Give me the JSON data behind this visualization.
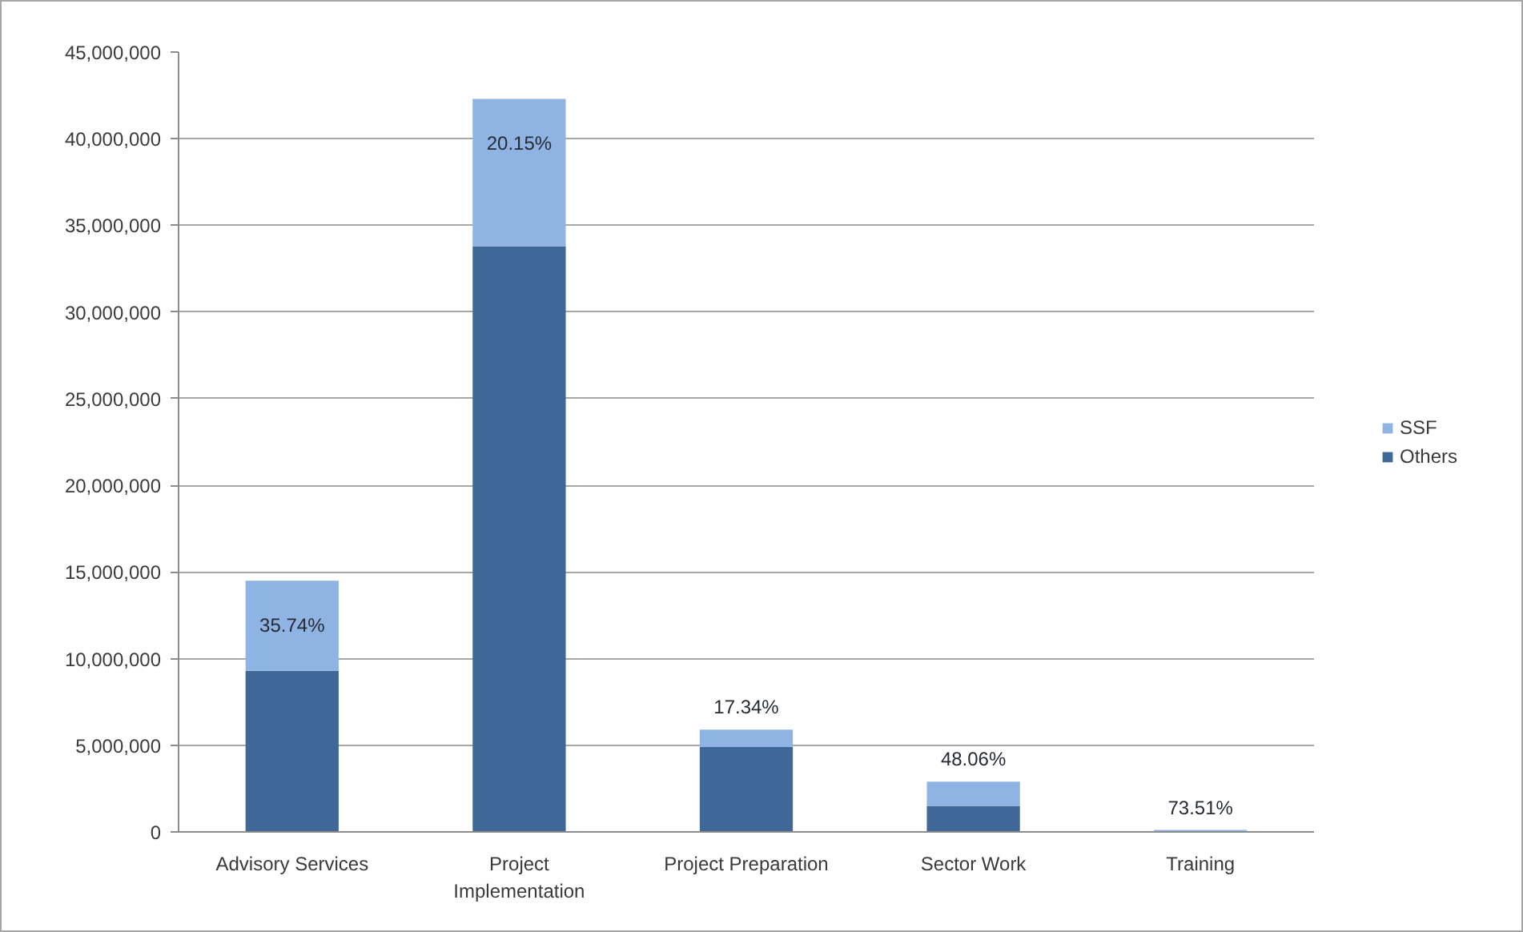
{
  "chart_data": {
    "type": "bar",
    "stacked": true,
    "categories": [
      "Advisory Services",
      "Project Implementation",
      "Project Preparation",
      "Sector Work",
      "Training"
    ],
    "series": [
      {
        "name": "Others",
        "color": "#3f6899",
        "values": [
          9300000,
          33800000,
          4900000,
          1500000,
          30000
        ]
      },
      {
        "name": "SSF",
        "color": "#8fb4e3",
        "values": [
          5200000,
          8500000,
          1000000,
          1400000,
          80000
        ]
      }
    ],
    "annotations": [
      {
        "text": "35.74%",
        "x": "Advisory Services",
        "y": 14500000
      },
      {
        "text": "20.15%",
        "x": "Project Implementation",
        "y": 42300000
      },
      {
        "text": "17.34%",
        "x": "Project Preparation",
        "y": 5900000
      },
      {
        "text": "48.06%",
        "x": "Sector Work",
        "y": 2900000
      },
      {
        "text": "73.51%",
        "x": "Training",
        "y": 110000
      }
    ],
    "ylim": [
      0,
      45000000
    ],
    "yticks": [
      0,
      {
        "value": 5000000,
        "label": "5,000,000"
      },
      {
        "value": 10000000,
        "label": "10,000,000"
      },
      {
        "value": 15000000,
        "label": "15,000,000"
      },
      {
        "value": 20000000,
        "label": "20,000,000"
      },
      {
        "value": 25000000,
        "label": "25,000,000"
      },
      {
        "value": 30000000,
        "label": "30,000,000"
      },
      {
        "value": 35000000,
        "label": "35,000,000"
      },
      {
        "value": 40000000,
        "label": "40,000,000"
      },
      {
        "value": 45000000,
        "label": "45,000,000"
      }
    ],
    "grid": "y",
    "legend": "right"
  }
}
